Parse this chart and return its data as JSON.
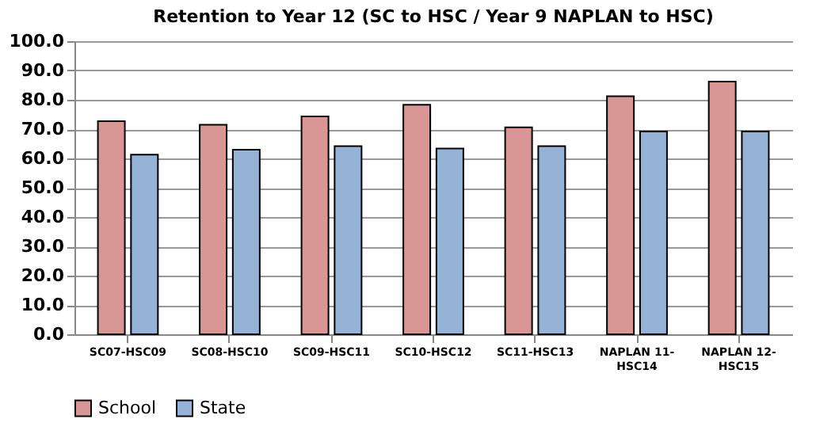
{
  "chart_data": {
    "type": "bar",
    "title": "Retention to Year 12 (SC to HSC / Year 9 NAPLAN  to HSC)",
    "categories": [
      "SC07-HSC09",
      "SC08-HSC10",
      "SC09-HSC11",
      "SC10-HSC12",
      "SC11-HSC13",
      "NAPLAN 11-HSC14",
      "NAPLAN 12-HSC15"
    ],
    "series": [
      {
        "name": "School",
        "color": "#d99694",
        "values": [
          72.7,
          71.5,
          74.3,
          78.3,
          70.6,
          81.2,
          86.2
        ]
      },
      {
        "name": "State",
        "color": "#95b3d7",
        "values": [
          61.3,
          63.0,
          64.2,
          63.4,
          64.2,
          69.2,
          69.2
        ]
      }
    ],
    "ylim": [
      0,
      100
    ],
    "yticks": [
      {
        "value": 0,
        "label": "0.0"
      },
      {
        "value": 10,
        "label": "10.0"
      },
      {
        "value": 20,
        "label": "20.0"
      },
      {
        "value": 30,
        "label": "30.0"
      },
      {
        "value": 40,
        "label": "40.0"
      },
      {
        "value": 50,
        "label": "50.0"
      },
      {
        "value": 60,
        "label": "60.0"
      },
      {
        "value": 70,
        "label": "70.0"
      },
      {
        "value": 80,
        "label": "80.0"
      },
      {
        "value": 90,
        "label": "90.0"
      },
      {
        "value": 100,
        "label": "100.0"
      }
    ],
    "grid": "y",
    "legend": "bottom"
  }
}
